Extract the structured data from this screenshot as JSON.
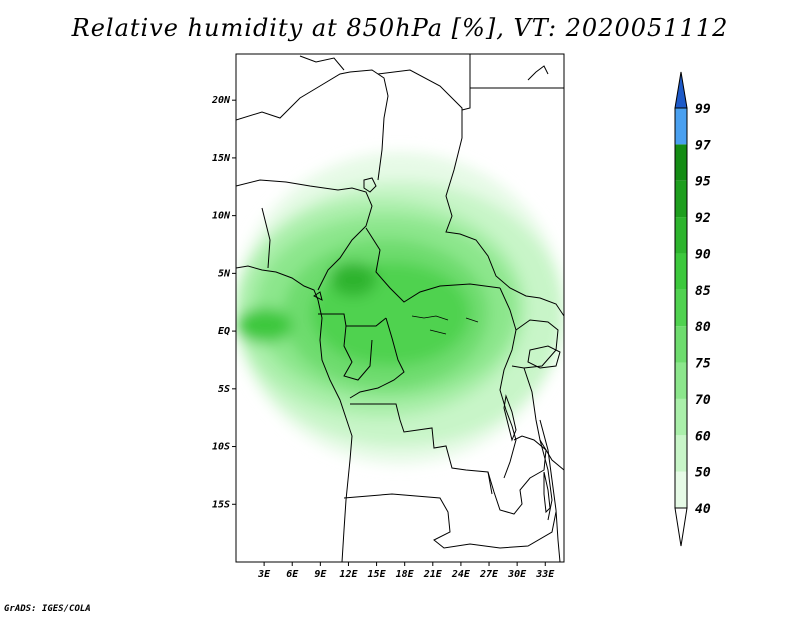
{
  "title": "Relative humidity at 850hPa [%], VT: 2020051112",
  "credit": "GrADS: IGES/COLA",
  "map": {
    "lon_range": [
      0,
      35
    ],
    "lat_range": [
      -20,
      24
    ],
    "lat_ticks": [
      {
        "value": 20,
        "label": "20N"
      },
      {
        "value": 15,
        "label": "15N"
      },
      {
        "value": 10,
        "label": "10N"
      },
      {
        "value": 5,
        "label": "5N"
      },
      {
        "value": 0,
        "label": "EQ"
      },
      {
        "value": -5,
        "label": "5S"
      },
      {
        "value": -10,
        "label": "10S"
      },
      {
        "value": -15,
        "label": "15S"
      }
    ],
    "lon_ticks": [
      {
        "value": 3,
        "label": "3E"
      },
      {
        "value": 6,
        "label": "6E"
      },
      {
        "value": 9,
        "label": "9E"
      },
      {
        "value": 12,
        "label": "12E"
      },
      {
        "value": 15,
        "label": "15E"
      },
      {
        "value": 18,
        "label": "18E"
      },
      {
        "value": 21,
        "label": "21E"
      },
      {
        "value": 24,
        "label": "24E"
      },
      {
        "value": 27,
        "label": "27E"
      },
      {
        "value": 30,
        "label": "30E"
      },
      {
        "value": 33,
        "label": "33E"
      }
    ]
  },
  "colorbar": {
    "levels": [
      {
        "label": "40",
        "color": "#e6fae6"
      },
      {
        "label": "50",
        "color": "#c8f5c8"
      },
      {
        "label": "60",
        "color": "#aaefaa"
      },
      {
        "label": "70",
        "color": "#8ce68c"
      },
      {
        "label": "75",
        "color": "#6edc6e"
      },
      {
        "label": "80",
        "color": "#50d250"
      },
      {
        "label": "85",
        "color": "#3cc83c"
      },
      {
        "label": "90",
        "color": "#2db42d"
      },
      {
        "label": "92",
        "color": "#1e9e1e"
      },
      {
        "label": "95",
        "color": "#148c14"
      },
      {
        "label": "97",
        "color": "#4aa0f0"
      },
      {
        "label": "99",
        "color": "#2878dc"
      }
    ],
    "below_color": "#ffffff",
    "above_color": "#1e5ac8"
  },
  "humid_regions": [
    {
      "level": 0,
      "lon": 0,
      "lat": 15.5,
      "w": 35,
      "h": 27
    },
    {
      "level": 1,
      "lon": 0,
      "lat": 13,
      "w": 35,
      "h": 23
    },
    {
      "level": 2,
      "lon": 0,
      "lat": 11.5,
      "w": 31,
      "h": 19
    },
    {
      "level": 3,
      "lon": 2,
      "lat": 10,
      "w": 28,
      "h": 16
    },
    {
      "level": 4,
      "lon": 5,
      "lat": 8,
      "w": 22,
      "h": 13
    },
    {
      "level": 5,
      "lon": 8,
      "lat": 6,
      "w": 17,
      "h": 9
    },
    {
      "level": 6,
      "lon": 0,
      "lat": 2,
      "w": 6,
      "h": 3
    },
    {
      "level": 7,
      "lon": 10,
      "lat": 6,
      "w": 5,
      "h": 3
    }
  ]
}
